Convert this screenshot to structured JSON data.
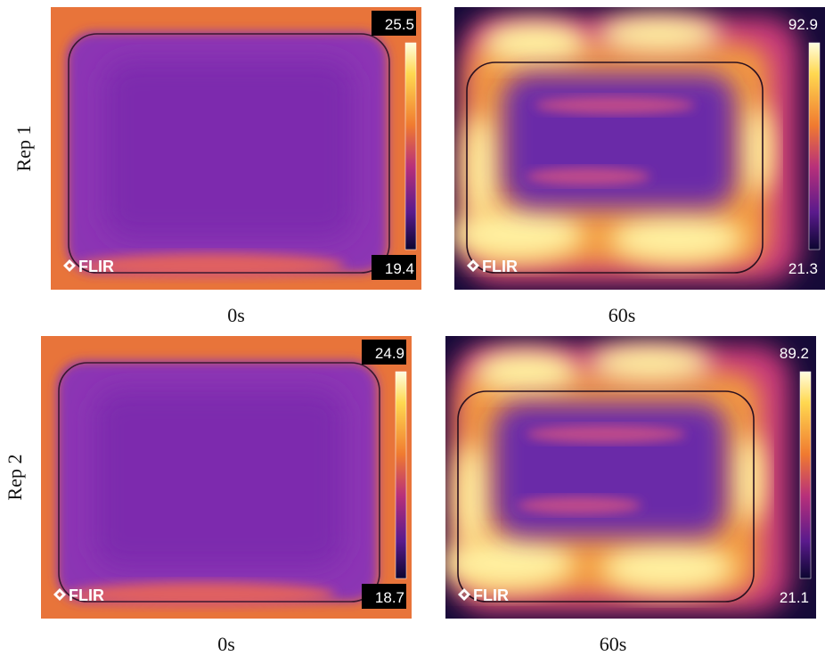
{
  "rows": [
    {
      "label": "Rep 1",
      "panels": [
        {
          "caption": "0s",
          "max": "25.5",
          "min": "19.4",
          "logo": "FLIR"
        },
        {
          "caption": "60s",
          "max": "92.9",
          "min": "21.3",
          "logo": "FLIR"
        }
      ]
    },
    {
      "label": "Rep 2",
      "panels": [
        {
          "caption": "0s",
          "max": "24.9",
          "min": "18.7",
          "logo": "FLIR"
        },
        {
          "caption": "60s",
          "max": "89.2",
          "min": "21.1",
          "logo": "FLIR"
        }
      ]
    }
  ]
}
